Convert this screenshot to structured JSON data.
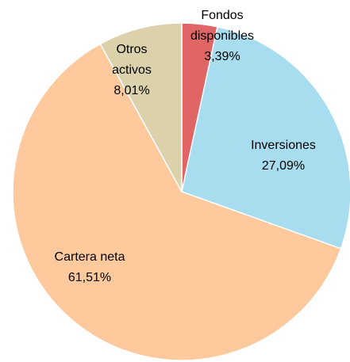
{
  "chart_data": {
    "type": "pie",
    "categories": [
      "Fondos disponibles",
      "Inversiones",
      "Cartera neta",
      "Otros activos"
    ],
    "values": [
      3.39,
      27.09,
      61.51,
      8.01
    ],
    "value_labels": [
      "3,39%",
      "27,09%",
      "61,51%",
      "8,01%"
    ],
    "colors": [
      "#e06666",
      "#a8dcef",
      "#fdc99d",
      "#dbd2ab"
    ],
    "start_angle": 90,
    "direction": "clockwise"
  }
}
